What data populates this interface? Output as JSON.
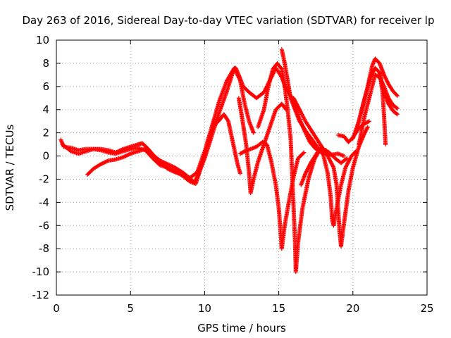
{
  "chart_data": {
    "type": "scatter",
    "title": "Day 263 of 2016, Sidereal Day-to-day VTEC variation (SDTVAR) for receiver lp",
    "xlabel": "GPS time / hours",
    "ylabel": "SDTVAR / TECUs",
    "xlim": [
      0,
      25
    ],
    "ylim": [
      -12,
      10
    ],
    "xticks": [
      0,
      5,
      10,
      15,
      20,
      25
    ],
    "yticks": [
      -12,
      -10,
      -8,
      -6,
      -4,
      -2,
      0,
      2,
      4,
      6,
      8,
      10
    ],
    "grid": true,
    "marker": "+",
    "color": "#ff0000",
    "series": [
      {
        "points": [
          [
            0.3,
            1.4
          ],
          [
            0.5,
            0.8
          ],
          [
            1.0,
            0.7
          ],
          [
            1.5,
            0.5
          ],
          [
            2.0,
            0.6
          ],
          [
            2.5,
            0.6
          ],
          [
            3.0,
            0.6
          ],
          [
            3.5,
            0.5
          ],
          [
            4.0,
            0.3
          ],
          [
            4.5,
            0.6
          ],
          [
            5.0,
            0.8
          ],
          [
            5.5,
            1.0
          ],
          [
            5.8,
            1.1
          ],
          [
            6.2,
            0.6
          ],
          [
            6.6,
            0.0
          ],
          [
            7.0,
            -0.4
          ],
          [
            7.5,
            -0.7
          ],
          [
            8.0,
            -1.0
          ],
          [
            8.5,
            -1.4
          ],
          [
            9.0,
            -1.9
          ],
          [
            9.3,
            -2.3
          ],
          [
            9.6,
            -1.5
          ],
          [
            10.0,
            -0.2
          ],
          [
            10.5,
            1.8
          ],
          [
            11.0,
            3.8
          ],
          [
            11.5,
            5.6
          ],
          [
            11.9,
            7.2
          ],
          [
            12.1,
            7.6
          ],
          [
            12.3,
            7.0
          ],
          [
            12.6,
            6.0
          ],
          [
            13.0,
            5.5
          ],
          [
            13.5,
            5.0
          ],
          [
            14.0,
            5.5
          ],
          [
            14.5,
            6.8
          ],
          [
            14.8,
            7.6
          ],
          [
            15.2,
            6.8
          ],
          [
            15.5,
            5.8
          ],
          [
            15.9,
            5.0
          ],
          [
            16.3,
            3.5
          ],
          [
            16.7,
            2.3
          ],
          [
            17.1,
            1.2
          ],
          [
            17.5,
            0.6
          ],
          [
            18.0,
            0.3
          ],
          [
            18.5,
            0.1
          ],
          [
            19.0,
            0.2
          ],
          [
            19.4,
            0.0
          ]
        ]
      },
      {
        "points": [
          [
            0.4,
            1.0
          ],
          [
            1.0,
            0.4
          ],
          [
            1.5,
            0.2
          ],
          [
            2.0,
            0.4
          ],
          [
            2.5,
            0.6
          ],
          [
            3.0,
            0.5
          ],
          [
            3.5,
            0.3
          ],
          [
            4.0,
            0.2
          ],
          [
            4.5,
            0.4
          ],
          [
            5.0,
            0.6
          ],
          [
            5.5,
            0.7
          ],
          [
            6.0,
            0.5
          ],
          [
            6.5,
            -0.2
          ],
          [
            7.0,
            -0.8
          ],
          [
            7.5,
            -1.0
          ],
          [
            8.0,
            -1.3
          ],
          [
            8.5,
            -1.7
          ],
          [
            9.0,
            -2.2
          ],
          [
            9.4,
            -2.4
          ],
          [
            9.8,
            -0.8
          ],
          [
            10.2,
            1.0
          ],
          [
            10.6,
            2.6
          ],
          [
            11.0,
            3.1
          ],
          [
            11.3,
            3.6
          ],
          [
            11.6,
            3.0
          ],
          [
            11.8,
            1.8
          ],
          [
            12.0,
            0.6
          ],
          [
            12.2,
            -0.6
          ],
          [
            12.4,
            -1.5
          ]
        ]
      },
      {
        "points": [
          [
            2.1,
            -1.6
          ],
          [
            2.5,
            -1.1
          ],
          [
            3.0,
            -0.7
          ],
          [
            3.5,
            -0.4
          ],
          [
            4.0,
            -0.3
          ],
          [
            4.5,
            -0.1
          ],
          [
            5.0,
            0.2
          ],
          [
            5.5,
            0.4
          ],
          [
            6.0,
            0.6
          ],
          [
            6.5,
            0.1
          ],
          [
            7.0,
            -0.5
          ],
          [
            7.5,
            -1.1
          ],
          [
            8.0,
            -1.4
          ],
          [
            8.5,
            -1.6
          ],
          [
            9.0,
            -1.9
          ],
          [
            9.5,
            -1.4
          ],
          [
            10.0,
            0.4
          ],
          [
            10.5,
            2.6
          ],
          [
            11.0,
            4.8
          ],
          [
            11.5,
            6.5
          ],
          [
            12.0,
            7.6
          ],
          [
            12.4,
            6.5
          ],
          [
            12.7,
            4.5
          ],
          [
            13.0,
            3.0
          ],
          [
            13.3,
            2.0
          ]
        ]
      },
      {
        "points": [
          [
            12.3,
            5.0
          ],
          [
            12.5,
            3.5
          ],
          [
            12.8,
            1.0
          ],
          [
            13.0,
            -1.5
          ],
          [
            13.1,
            -3.2
          ],
          [
            13.3,
            -2.0
          ],
          [
            13.6,
            -0.5
          ],
          [
            14.0,
            1.0
          ],
          [
            14.4,
            2.5
          ],
          [
            14.8,
            4.0
          ],
          [
            15.2,
            4.5
          ],
          [
            15.5,
            4.0
          ]
        ]
      },
      {
        "points": [
          [
            12.4,
            0.2
          ],
          [
            12.7,
            0.4
          ],
          [
            13.1,
            0.6
          ],
          [
            13.5,
            0.8
          ],
          [
            13.9,
            1.2
          ],
          [
            14.2,
            1.0
          ],
          [
            14.5,
            -0.5
          ],
          [
            14.8,
            -2.5
          ],
          [
            15.0,
            -4.5
          ],
          [
            15.1,
            -6.2
          ],
          [
            15.2,
            -8.0
          ],
          [
            15.4,
            -6.0
          ],
          [
            15.7,
            -3.8
          ],
          [
            16.0,
            -1.8
          ],
          [
            16.3,
            -0.2
          ],
          [
            16.7,
            0.3
          ]
        ]
      },
      {
        "points": [
          [
            13.6,
            2.5
          ],
          [
            14.0,
            4.0
          ],
          [
            14.3,
            6.0
          ],
          [
            14.6,
            7.5
          ],
          [
            14.9,
            8.0
          ],
          [
            15.2,
            7.5
          ],
          [
            15.4,
            6.0
          ],
          [
            15.6,
            4.0
          ],
          [
            15.8,
            1.5
          ],
          [
            15.9,
            -1.5
          ],
          [
            16.0,
            -4.5
          ],
          [
            16.1,
            -7.5
          ],
          [
            16.15,
            -10.0
          ],
          [
            16.3,
            -7.5
          ],
          [
            16.6,
            -4.5
          ],
          [
            17.0,
            -2.0
          ],
          [
            17.4,
            -0.3
          ],
          [
            17.8,
            0.6
          ],
          [
            18.2,
            0.5
          ]
        ]
      },
      {
        "points": [
          [
            15.2,
            9.2
          ],
          [
            15.4,
            8.0
          ],
          [
            15.6,
            6.5
          ],
          [
            15.8,
            5.0
          ],
          [
            16.1,
            4.0
          ],
          [
            16.4,
            3.0
          ],
          [
            16.8,
            2.2
          ],
          [
            17.2,
            1.5
          ],
          [
            17.6,
            0.8
          ],
          [
            18.0,
            0.1
          ],
          [
            18.3,
            -1.5
          ],
          [
            18.5,
            -3.5
          ],
          [
            18.6,
            -5.5
          ],
          [
            18.7,
            -6.0
          ],
          [
            18.9,
            -4.5
          ],
          [
            19.2,
            -2.5
          ],
          [
            19.5,
            -1.0
          ],
          [
            19.9,
            0.0
          ],
          [
            20.2,
            0.4
          ]
        ]
      },
      {
        "points": [
          [
            16.0,
            5.0
          ],
          [
            16.4,
            4.0
          ],
          [
            16.8,
            3.0
          ],
          [
            17.3,
            2.0
          ],
          [
            17.8,
            1.0
          ],
          [
            18.3,
            0.0
          ],
          [
            18.7,
            -1.0
          ],
          [
            18.9,
            -2.5
          ],
          [
            19.0,
            -4.5
          ],
          [
            19.1,
            -6.5
          ],
          [
            19.2,
            -7.8
          ],
          [
            19.4,
            -5.8
          ],
          [
            19.7,
            -3.0
          ],
          [
            20.0,
            -1.0
          ],
          [
            20.4,
            0.8
          ],
          [
            20.8,
            2.0
          ],
          [
            21.0,
            2.5
          ]
        ]
      },
      {
        "points": [
          [
            16.5,
            -2.5
          ],
          [
            16.8,
            -1.5
          ],
          [
            17.2,
            -0.5
          ],
          [
            17.6,
            0.3
          ],
          [
            18.0,
            0.6
          ],
          [
            18.4,
            0.3
          ],
          [
            18.8,
            -0.2
          ],
          [
            19.2,
            -0.6
          ],
          [
            19.6,
            -0.2
          ]
        ]
      },
      {
        "points": [
          [
            19.0,
            1.8
          ],
          [
            19.4,
            1.7
          ],
          [
            19.7,
            1.2
          ],
          [
            20.0,
            1.6
          ],
          [
            20.4,
            2.4
          ],
          [
            20.8,
            2.8
          ],
          [
            21.1,
            3.0
          ]
        ]
      },
      {
        "points": [
          [
            20.0,
            1.5
          ],
          [
            20.4,
            3.0
          ],
          [
            20.8,
            5.0
          ],
          [
            21.2,
            6.8
          ],
          [
            21.5,
            7.6
          ],
          [
            21.8,
            7.2
          ],
          [
            22.0,
            5.5
          ],
          [
            22.1,
            3.5
          ],
          [
            22.2,
            1.0
          ]
        ]
      },
      {
        "points": [
          [
            20.2,
            2.0
          ],
          [
            20.6,
            4.0
          ],
          [
            21.0,
            6.0
          ],
          [
            21.3,
            7.8
          ],
          [
            21.5,
            8.4
          ],
          [
            21.8,
            8.0
          ],
          [
            22.1,
            7.0
          ],
          [
            22.4,
            6.2
          ],
          [
            22.7,
            5.6
          ],
          [
            23.0,
            5.2
          ]
        ]
      },
      {
        "points": [
          [
            20.4,
            1.0
          ],
          [
            20.8,
            3.5
          ],
          [
            21.2,
            5.5
          ],
          [
            21.5,
            7.0
          ],
          [
            21.8,
            6.8
          ],
          [
            22.1,
            6.0
          ],
          [
            22.4,
            5.0
          ],
          [
            22.7,
            4.4
          ],
          [
            23.0,
            4.1
          ]
        ]
      },
      {
        "points": [
          [
            21.8,
            7.2
          ],
          [
            22.1,
            5.5
          ],
          [
            22.4,
            4.5
          ],
          [
            22.7,
            3.9
          ],
          [
            23.0,
            3.6
          ]
        ]
      }
    ]
  }
}
